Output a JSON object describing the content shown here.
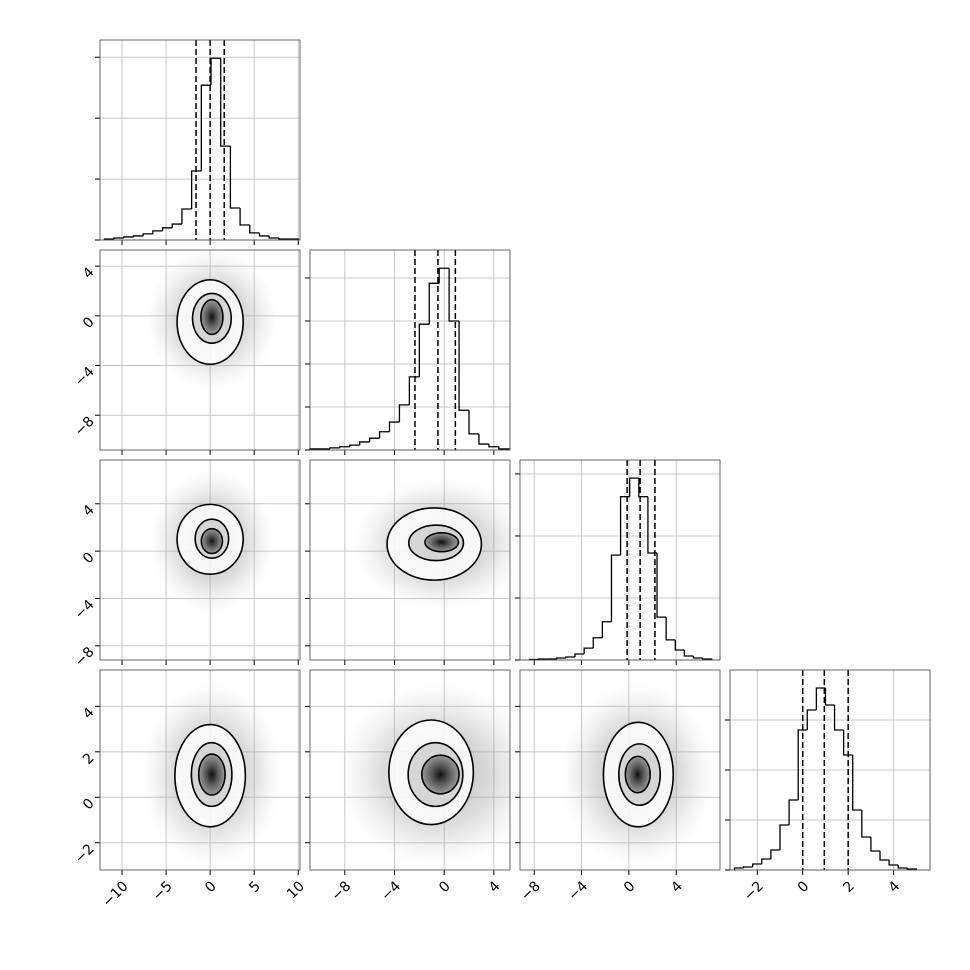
{
  "chart_data": {
    "type": "corner",
    "grid": true,
    "hist_color": "#000000",
    "contour_color": "#000000",
    "variables": [
      {
        "xlim": [
          -12.5,
          10.2
        ],
        "ticks": [
          {
            "value": -10,
            "label": "−10"
          },
          {
            "value": -5,
            "label": "−5"
          },
          0,
          5,
          10
        ],
        "bins": [
          -12,
          -10.9,
          -9.8,
          -8.7,
          -7.6,
          -6.5,
          -5.4,
          -4.3,
          -3.2,
          -2.1,
          -1,
          0.1,
          1.2,
          2.3,
          3.4,
          4.5,
          5.6,
          6.7,
          7.8,
          8.9,
          10
        ],
        "counts": [
          10,
          20,
          30,
          40,
          60,
          90,
          120,
          157,
          305,
          680,
          1525,
          1790,
          925,
          315,
          148,
          70,
          40,
          20,
          10,
          10
        ],
        "ylim": [
          0,
          1970
        ],
        "yticks": [
          0,
          600,
          1200,
          1800
        ],
        "quantiles": [
          -1.6,
          0.0,
          1.6
        ]
      },
      {
        "xlim": [
          -10.8,
          5.3
        ],
        "ticks": [
          {
            "value": -8,
            "label": "−8"
          },
          {
            "value": -4,
            "label": "−4"
          },
          0,
          4
        ],
        "bins": [
          -10.8,
          -10,
          -9.2,
          -8.4,
          -7.6,
          -6.8,
          -6,
          -5.2,
          -4.4,
          -3.6,
          -2.8,
          -2,
          -1.2,
          -0.4,
          0.4,
          1.2,
          2,
          2.8,
          3.6,
          4.4,
          5.2
        ],
        "counts": [
          10,
          10,
          20,
          30,
          45,
          75,
          110,
          170,
          260,
          420,
          680,
          1170,
          1550,
          1690,
          1200,
          370,
          150,
          55,
          30,
          10
        ],
        "ylim": [
          0,
          1860
        ],
        "yticks": [
          0,
          400,
          800,
          1200,
          1600
        ],
        "quantiles": [
          -2.35,
          -0.5,
          0.9
        ]
      },
      {
        "xlim": [
          -9.2,
          7.7
        ],
        "ticks": [
          {
            "value": -8,
            "label": "−8"
          },
          {
            "value": -4,
            "label": "−4"
          },
          0,
          4
        ],
        "bins": [
          -8.4,
          -7.63,
          -6.86,
          -6.09,
          -5.32,
          -4.55,
          -3.78,
          -3.01,
          -2.24,
          -1.47,
          -0.7,
          0.07,
          0.84,
          1.61,
          2.38,
          3.15,
          3.92,
          4.69,
          5.46,
          6.23,
          7.0
        ],
        "counts": [
          5,
          10,
          10,
          19,
          29,
          58,
          115,
          215,
          370,
          1015,
          1580,
          1760,
          1580,
          1035,
          415,
          195,
          97,
          39,
          19,
          10
        ],
        "ylim": [
          0,
          1935
        ],
        "yticks": [
          0,
          600,
          1200,
          1800
        ],
        "quantiles": [
          -0.15,
          0.95,
          2.2
        ]
      },
      {
        "xlim": [
          -3.2,
          5.6
        ],
        "ticks": [
          {
            "value": -2,
            "label": "−2"
          },
          0,
          2,
          4
        ],
        "bins": [
          -3,
          -2.6,
          -2.2,
          -1.8,
          -1.4,
          -1,
          -0.6,
          -0.2,
          0.2,
          0.6,
          1,
          1.4,
          1.8,
          2.2,
          2.6,
          3,
          3.4,
          3.8,
          4.2,
          4.6,
          5
        ],
        "counts": [
          16,
          24,
          48,
          88,
          160,
          360,
          560,
          1120,
          1280,
          1456,
          1320,
          1120,
          920,
          480,
          264,
          152,
          80,
          40,
          16,
          8
        ],
        "ylim": [
          0,
          1600
        ],
        "yticks": [
          0,
          400,
          800,
          1200
        ],
        "quantiles": [
          0.0,
          0.95,
          2.0
        ]
      }
    ],
    "pairs": [
      {
        "x": 0,
        "y": 1,
        "cloud": {
          "cx": 0.2,
          "cy": -0.3,
          "rx": 7.4,
          "ry": 5.6
        },
        "contours": [
          {
            "cx": 0.0,
            "cy": -0.5,
            "rx": 3.75,
            "ry": 3.4
          },
          {
            "cx": 0.2,
            "cy": -0.2,
            "rx": 2.2,
            "ry": 2.0
          },
          {
            "cx": 0.2,
            "cy": -0.1,
            "rx": 1.25,
            "ry": 1.4
          }
        ]
      },
      {
        "x": 0,
        "y": 2,
        "cloud": {
          "cx": 0.2,
          "cy": 0.8,
          "rx": 7.0,
          "ry": 6.0
        },
        "contours": [
          {
            "cx": 0.0,
            "cy": 1.0,
            "rx": 3.75,
            "ry": 2.95
          },
          {
            "cx": 0.2,
            "cy": 1.05,
            "rx": 1.9,
            "ry": 1.65
          },
          {
            "cx": 0.2,
            "cy": 0.85,
            "rx": 1.2,
            "ry": 1.05
          }
        ]
      },
      {
        "x": 1,
        "y": 2,
        "cloud": {
          "cx": -0.3,
          "cy": 0.6,
          "rx": 7.0,
          "ry": 5.5
        },
        "contours": [
          {
            "cx": -0.8,
            "cy": 0.6,
            "rx": 3.8,
            "ry": 3.05
          },
          {
            "cx": -0.65,
            "cy": 0.7,
            "rx": 2.2,
            "ry": 1.5
          },
          {
            "cx": -0.2,
            "cy": 0.75,
            "rx": 1.35,
            "ry": 0.8
          }
        ]
      },
      {
        "x": 0,
        "y": 3,
        "cloud": {
          "cx": 0.2,
          "cy": 1.0,
          "rx": 8.0,
          "ry": 4.0
        },
        "contours": [
          {
            "cx": 0.0,
            "cy": 0.95,
            "rx": 4.0,
            "ry": 2.25
          },
          {
            "cx": 0.17,
            "cy": 1.0,
            "rx": 2.3,
            "ry": 1.4
          },
          {
            "cx": 0.2,
            "cy": 1.0,
            "rx": 1.5,
            "ry": 0.9
          }
        ]
      },
      {
        "x": 1,
        "y": 3,
        "cloud": {
          "cx": -0.5,
          "cy": 1.0,
          "rx": 8.0,
          "ry": 4.0
        },
        "contours": [
          {
            "cx": -1.05,
            "cy": 1.1,
            "rx": 3.4,
            "ry": 2.3
          },
          {
            "cx": -0.7,
            "cy": 1.0,
            "rx": 2.2,
            "ry": 1.4
          },
          {
            "cx": -0.3,
            "cy": 1.0,
            "rx": 1.5,
            "ry": 0.85
          }
        ]
      },
      {
        "x": 2,
        "y": 3,
        "cloud": {
          "cx": 0.7,
          "cy": 1.0,
          "rx": 6.5,
          "ry": 4.0
        },
        "contours": [
          {
            "cx": 0.8,
            "cy": 1.0,
            "rx": 2.95,
            "ry": 2.3
          },
          {
            "cx": 0.9,
            "cy": 1.0,
            "rx": 1.75,
            "ry": 1.35
          },
          {
            "cx": 0.75,
            "cy": 1.0,
            "rx": 1.05,
            "ry": 0.8
          }
        ]
      }
    ]
  }
}
